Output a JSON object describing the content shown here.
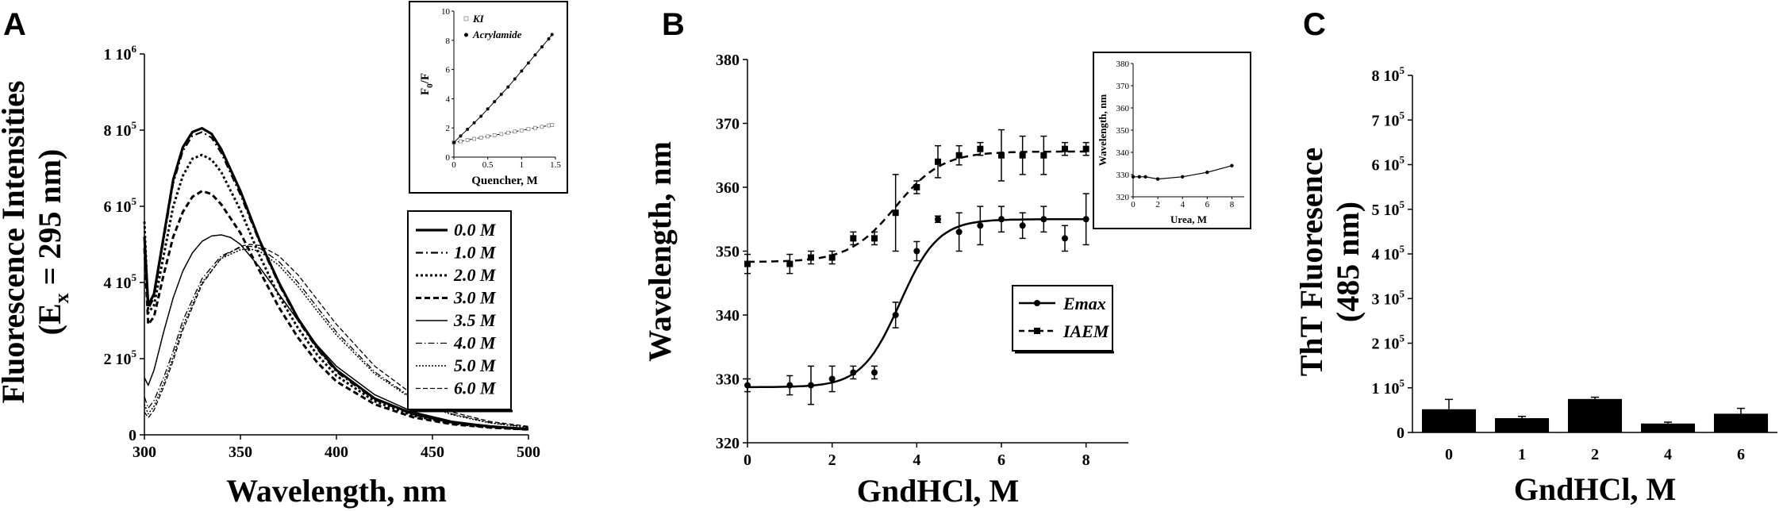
{
  "panel_labels": [
    "A",
    "B",
    "C"
  ],
  "chart_data": [
    {
      "panel": "A",
      "type": "line",
      "xlabel": "Wavelength, nm",
      "ylabel_line1": "Fluorescence Intensities",
      "ylabel_line2": "(E",
      "ylabel_sub": "x",
      "ylabel_end": " = 295 nm)",
      "xlim": [
        300,
        500
      ],
      "ylim": [
        0,
        1000000
      ],
      "xticks": [
        300,
        350,
        400,
        450,
        500
      ],
      "yticks": [
        {
          "value": 0,
          "base": "0",
          "exp": ""
        },
        {
          "value": 200000,
          "base": "2 10",
          "exp": "5"
        },
        {
          "value": 400000,
          "base": "4 10",
          "exp": "5"
        },
        {
          "value": 600000,
          "base": "6 10",
          "exp": "5"
        },
        {
          "value": 800000,
          "base": "8 10",
          "exp": "5"
        },
        {
          "value": 1000000,
          "base": "1 10",
          "exp": "6"
        }
      ],
      "legend_position": "right",
      "series": [
        {
          "name": "0.0 M",
          "dash": "",
          "width": 3.2,
          "x": [
            300,
            302,
            305,
            310,
            315,
            320,
            325,
            330,
            335,
            340,
            350,
            360,
            370,
            380,
            390,
            400,
            420,
            440,
            460,
            480,
            500
          ],
          "y": [
            520000,
            340000,
            370000,
            520000,
            670000,
            755000,
            795000,
            805000,
            790000,
            750000,
            640000,
            510000,
            400000,
            305000,
            230000,
            170000,
            95000,
            55000,
            33000,
            22000,
            15000
          ]
        },
        {
          "name": "1.0 M",
          "dash": "9,4,2,4",
          "width": 2.2,
          "x": [
            300,
            302,
            305,
            310,
            315,
            320,
            325,
            330,
            335,
            340,
            350,
            360,
            370,
            380,
            390,
            400,
            420,
            440,
            460,
            480,
            500
          ],
          "y": [
            520000,
            330000,
            360000,
            510000,
            660000,
            745000,
            785000,
            795000,
            780000,
            740000,
            630000,
            505000,
            395000,
            300000,
            225000,
            165000,
            92000,
            53000,
            32000,
            21000,
            15000
          ]
        },
        {
          "name": "2.0 M",
          "dash": "3,3",
          "width": 3,
          "x": [
            300,
            302,
            305,
            310,
            315,
            320,
            325,
            330,
            335,
            340,
            350,
            360,
            370,
            380,
            390,
            400,
            420,
            440,
            460,
            480,
            500
          ],
          "y": [
            560000,
            320000,
            340000,
            470000,
            600000,
            680000,
            725000,
            735000,
            722000,
            690000,
            590000,
            470000,
            365000,
            280000,
            210000,
            155000,
            88000,
            50000,
            30000,
            20000,
            14000
          ]
        },
        {
          "name": "3.0 M",
          "dash": "7,4",
          "width": 3,
          "x": [
            300,
            302,
            305,
            310,
            315,
            320,
            325,
            330,
            335,
            340,
            350,
            360,
            370,
            380,
            390,
            400,
            420,
            440,
            460,
            480,
            500
          ],
          "y": [
            490000,
            290000,
            310000,
            420000,
            520000,
            585000,
            625000,
            640000,
            632000,
            605000,
            530000,
            430000,
            335000,
            255000,
            190000,
            140000,
            80000,
            46000,
            28000,
            19000,
            14000
          ]
        },
        {
          "name": "3.5 M",
          "dash": "",
          "width": 1.5,
          "x": [
            300,
            302,
            305,
            310,
            315,
            320,
            325,
            330,
            335,
            340,
            345,
            350,
            360,
            370,
            380,
            390,
            400,
            420,
            440,
            460,
            480,
            500
          ],
          "y": [
            150000,
            130000,
            170000,
            270000,
            360000,
            430000,
            478000,
            508000,
            522000,
            525000,
            518000,
            500000,
            440000,
            370000,
            300000,
            235000,
            180000,
            105000,
            60000,
            36000,
            23000,
            16000
          ]
        },
        {
          "name": "4.0 M",
          "dash": "8,3,1.5,3",
          "width": 1.3,
          "x": [
            300,
            302,
            305,
            310,
            315,
            320,
            330,
            340,
            350,
            355,
            360,
            370,
            380,
            390,
            400,
            420,
            440,
            460,
            480,
            500
          ],
          "y": [
            100000,
            70000,
            90000,
            150000,
            220000,
            300000,
            410000,
            470000,
            492000,
            495000,
            490000,
            455000,
            400000,
            335000,
            270000,
            165000,
            95000,
            55000,
            32000,
            20000
          ]
        },
        {
          "name": "5.0 M",
          "dash": "2,2",
          "width": 1.5,
          "x": [
            300,
            302,
            305,
            310,
            315,
            320,
            330,
            340,
            350,
            355,
            360,
            370,
            380,
            390,
            400,
            420,
            440,
            460,
            480,
            500
          ],
          "y": [
            80000,
            55000,
            75000,
            135000,
            205000,
            285000,
            400000,
            463000,
            486000,
            488000,
            482000,
            445000,
            390000,
            325000,
            262000,
            160000,
            92000,
            53000,
            31000,
            19000
          ]
        },
        {
          "name": "6.0 M",
          "dash": "6,3",
          "width": 1.3,
          "x": [
            300,
            302,
            305,
            310,
            315,
            320,
            330,
            340,
            350,
            355,
            360,
            370,
            380,
            390,
            400,
            420,
            440,
            460,
            480,
            500
          ],
          "y": [
            60000,
            45000,
            65000,
            125000,
            195000,
            275000,
            395000,
            465000,
            495000,
            500000,
            497000,
            470000,
            420000,
            355000,
            290000,
            180000,
            105000,
            60000,
            35000,
            22000
          ]
        }
      ],
      "inset": {
        "type": "scatter",
        "xlabel": "Quencher, M",
        "ylabel_main": "F",
        "ylabel_sub": "0",
        "ylabel_end": "/F",
        "xlim": [
          0,
          1.5
        ],
        "ylim": [
          0,
          10
        ],
        "xticks": [
          0,
          0.5,
          1,
          1.5
        ],
        "xtick_labels": [
          "0",
          "0.5",
          "1",
          "1.5"
        ],
        "yticks": [
          0,
          2,
          4,
          6,
          8,
          10
        ],
        "legend_position": "top-left",
        "series": [
          {
            "name": "KI",
            "marker": "open-square",
            "x": [
              0,
              0.1,
              0.2,
              0.3,
              0.4,
              0.5,
              0.6,
              0.7,
              0.8,
              0.9,
              1.0,
              1.1,
              1.2,
              1.3,
              1.4,
              1.45
            ],
            "y": [
              1,
              1.08,
              1.17,
              1.25,
              1.33,
              1.42,
              1.5,
              1.58,
              1.67,
              1.75,
              1.83,
              1.92,
              2.0,
              2.08,
              2.17,
              2.2
            ]
          },
          {
            "name": "Acrylamide",
            "marker": "filled-circle",
            "x": [
              0,
              0.1,
              0.2,
              0.3,
              0.4,
              0.5,
              0.6,
              0.7,
              0.8,
              0.9,
              1.0,
              1.1,
              1.2,
              1.3,
              1.4,
              1.45
            ],
            "y": [
              1,
              1.45,
              1.9,
              2.35,
              2.8,
              3.3,
              3.8,
              4.3,
              4.8,
              5.35,
              5.9,
              6.45,
              7.0,
              7.55,
              8.1,
              8.4
            ]
          }
        ]
      }
    },
    {
      "panel": "B",
      "type": "scatter",
      "xlabel": "GndHCl, M",
      "ylabel": "Wavelength, nm",
      "xlim": [
        0,
        9
      ],
      "ylim": [
        320,
        380
      ],
      "xticks": [
        0,
        2,
        4,
        6,
        8
      ],
      "yticks": [
        320,
        330,
        340,
        350,
        360,
        370,
        380
      ],
      "legend_position": "center-right",
      "series": [
        {
          "name": "Emax",
          "marker": "filled-circle",
          "line": "solid",
          "x": [
            0,
            1,
            1.5,
            2,
            2.5,
            3,
            3.5,
            4,
            4.5,
            5,
            5.5,
            6,
            6.5,
            7,
            7.5,
            8
          ],
          "y": [
            329,
            329,
            329,
            330,
            331,
            331,
            340,
            350,
            355,
            353,
            354,
            355,
            354,
            355,
            352,
            355
          ],
          "err": [
            1,
            1.5,
            3,
            2,
            1,
            1,
            2,
            1.5,
            0.5,
            3,
            3,
            2,
            2,
            2,
            2,
            4
          ],
          "fit": {
            "mid": 3.6,
            "low": 328.7,
            "high": 355,
            "slope": 0.45
          }
        },
        {
          "name": "IAEM",
          "marker": "filled-square",
          "line": "dashed",
          "x": [
            0,
            1,
            1.5,
            2,
            2.5,
            3,
            3.5,
            4,
            4.5,
            5,
            5.5,
            6,
            6.5,
            7,
            7.5,
            8
          ],
          "y": [
            348,
            348,
            349,
            349,
            352,
            352,
            356,
            360,
            364,
            365,
            366,
            365,
            365,
            365,
            366,
            366
          ],
          "err": [
            1.5,
            1.5,
            1,
            1,
            1,
            1,
            6,
            1,
            2.5,
            1.5,
            1,
            4,
            3,
            3,
            1,
            1
          ],
          "fit": {
            "mid": 3.5,
            "low": 348.3,
            "high": 365.6,
            "slope": 0.55
          }
        }
      ],
      "inset": {
        "type": "line",
        "xlabel": "Urea, M",
        "ylabel": "Wavelength, nm",
        "xlim": [
          0,
          9
        ],
        "ylim": [
          320,
          380
        ],
        "xticks": [
          0,
          2,
          4,
          6,
          8
        ],
        "yticks": [
          320,
          330,
          340,
          350,
          360,
          370,
          380
        ],
        "series": [
          {
            "name": "",
            "marker": "filled-circle",
            "x": [
              0,
              0.5,
              1,
              2,
              4,
              6,
              8
            ],
            "y": [
              329,
              329,
              329,
              328,
              329,
              331,
              334
            ]
          }
        ]
      }
    },
    {
      "panel": "C",
      "type": "bar",
      "xlabel": "GndHCl, M",
      "ylabel_line1": "ThT Fluoresence",
      "ylabel_line2": "(485 nm)",
      "categories": [
        "0",
        "1",
        "2",
        "4",
        "6"
      ],
      "values": [
        52000,
        32000,
        75000,
        20000,
        42000
      ],
      "errors": [
        22000,
        4000,
        4000,
        3000,
        12000
      ],
      "ylim": [
        0,
        800000
      ],
      "yticks": [
        {
          "value": 0,
          "base": "0",
          "exp": ""
        },
        {
          "value": 100000,
          "base": "1 10",
          "exp": "5"
        },
        {
          "value": 200000,
          "base": "2 10",
          "exp": "5"
        },
        {
          "value": 300000,
          "base": "3 10",
          "exp": "5"
        },
        {
          "value": 400000,
          "base": "4 10",
          "exp": "5"
        },
        {
          "value": 500000,
          "base": "5 10",
          "exp": "5"
        },
        {
          "value": 600000,
          "base": "6 10",
          "exp": "5"
        },
        {
          "value": 700000,
          "base": "7 10",
          "exp": "5"
        },
        {
          "value": 800000,
          "base": "8 10",
          "exp": "5"
        }
      ]
    }
  ]
}
